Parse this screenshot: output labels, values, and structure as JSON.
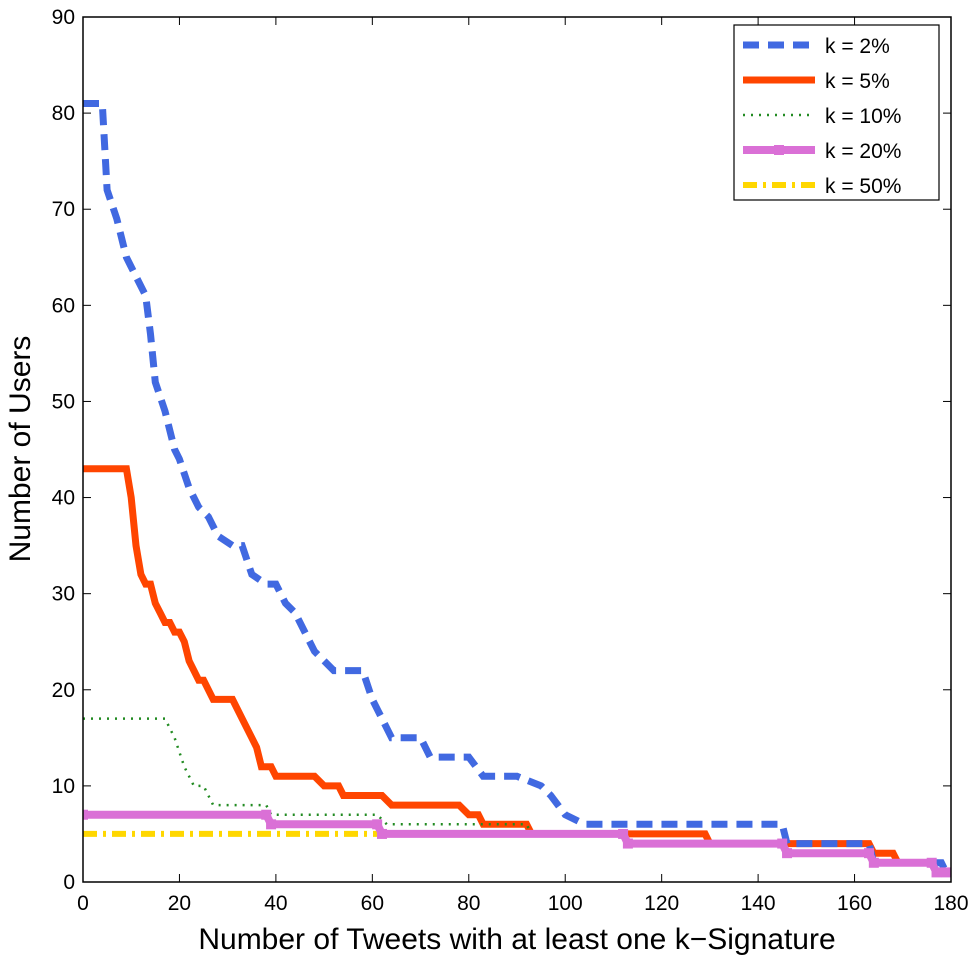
{
  "chart_data": {
    "type": "line",
    "title": "",
    "xlabel": "Number of Tweets with at least one k−Signature",
    "ylabel": "Number of Users",
    "xlim": [
      0,
      180
    ],
    "ylim": [
      0,
      90
    ],
    "xticks": [
      0,
      20,
      40,
      60,
      80,
      100,
      120,
      140,
      160,
      180
    ],
    "yticks": [
      0,
      10,
      20,
      30,
      40,
      50,
      60,
      70,
      80,
      90
    ],
    "grid": false,
    "legend_position": "top-right",
    "series": [
      {
        "name": "k = 2%",
        "color": "#4169E1",
        "style": "dashed",
        "points": [
          [
            0,
            81
          ],
          [
            4,
            81
          ],
          [
            5,
            72
          ],
          [
            7,
            69
          ],
          [
            9,
            65
          ],
          [
            11,
            63
          ],
          [
            13,
            61
          ],
          [
            14,
            57
          ],
          [
            15,
            52
          ],
          [
            17,
            49
          ],
          [
            19,
            45
          ],
          [
            20,
            44
          ],
          [
            22,
            41
          ],
          [
            24,
            39
          ],
          [
            26,
            38
          ],
          [
            28,
            36
          ],
          [
            31,
            35
          ],
          [
            33,
            35
          ],
          [
            35,
            32
          ],
          [
            38,
            31
          ],
          [
            40,
            31
          ],
          [
            42,
            29
          ],
          [
            44,
            28
          ],
          [
            46,
            26
          ],
          [
            48,
            24
          ],
          [
            50,
            23
          ],
          [
            52,
            22
          ],
          [
            58,
            22
          ],
          [
            60,
            19
          ],
          [
            62,
            17
          ],
          [
            64,
            15
          ],
          [
            70,
            15
          ],
          [
            72,
            13
          ],
          [
            80,
            13
          ],
          [
            83,
            11
          ],
          [
            90,
            11
          ],
          [
            95,
            10
          ],
          [
            97,
            9
          ],
          [
            100,
            7
          ],
          [
            104,
            6
          ],
          [
            145,
            6
          ],
          [
            146,
            4
          ],
          [
            163,
            4
          ],
          [
            164,
            2
          ],
          [
            178,
            2
          ],
          [
            179,
            1
          ]
        ]
      },
      {
        "name": "k = 5%",
        "color": "#FF4500",
        "style": "solid",
        "points": [
          [
            0,
            43
          ],
          [
            9,
            43
          ],
          [
            10,
            40
          ],
          [
            11,
            35
          ],
          [
            12,
            32
          ],
          [
            13,
            31
          ],
          [
            14,
            31
          ],
          [
            15,
            29
          ],
          [
            16,
            28
          ],
          [
            17,
            27
          ],
          [
            18,
            27
          ],
          [
            19,
            26
          ],
          [
            20,
            26
          ],
          [
            21,
            25
          ],
          [
            22,
            23
          ],
          [
            23,
            22
          ],
          [
            24,
            21
          ],
          [
            25,
            21
          ],
          [
            27,
            19
          ],
          [
            31,
            19
          ],
          [
            33,
            17
          ],
          [
            35,
            15
          ],
          [
            36,
            14
          ],
          [
            37,
            12
          ],
          [
            39,
            12
          ],
          [
            40,
            11
          ],
          [
            48,
            11
          ],
          [
            50,
            10
          ],
          [
            53,
            10
          ],
          [
            54,
            9
          ],
          [
            62,
            9
          ],
          [
            64,
            8
          ],
          [
            78,
            8
          ],
          [
            80,
            7
          ],
          [
            82,
            7
          ],
          [
            83,
            6
          ],
          [
            92,
            6
          ],
          [
            93,
            5
          ],
          [
            112,
            5
          ],
          [
            113,
            5
          ],
          [
            129,
            5
          ],
          [
            130,
            4
          ],
          [
            145,
            4
          ],
          [
            146,
            4
          ],
          [
            163,
            4
          ],
          [
            164,
            3
          ],
          [
            168,
            3
          ],
          [
            169,
            2
          ],
          [
            176,
            2
          ],
          [
            177,
            1
          ],
          [
            179,
            1
          ]
        ]
      },
      {
        "name": "k = 10%",
        "color": "#228B22",
        "style": "dotted",
        "points": [
          [
            0,
            17
          ],
          [
            17,
            17
          ],
          [
            19,
            15
          ],
          [
            21,
            12
          ],
          [
            23,
            10
          ],
          [
            25,
            10
          ],
          [
            27,
            8
          ],
          [
            38,
            8
          ],
          [
            39,
            7
          ],
          [
            61,
            7
          ],
          [
            63,
            6
          ],
          [
            80,
            6
          ],
          [
            82,
            6
          ],
          [
            92,
            6
          ],
          [
            93,
            5
          ],
          [
            112,
            5
          ],
          [
            113,
            4
          ],
          [
            145,
            4
          ],
          [
            146,
            3
          ],
          [
            163,
            3
          ],
          [
            164,
            2
          ],
          [
            176,
            2
          ],
          [
            177,
            1
          ],
          [
            179,
            1
          ]
        ]
      },
      {
        "name": "k = 20%",
        "color": "#DA70D6",
        "style": "solid-markers",
        "points": [
          [
            0,
            7
          ],
          [
            38,
            7
          ],
          [
            39,
            6
          ],
          [
            61,
            6
          ],
          [
            62,
            5
          ],
          [
            112,
            5
          ],
          [
            113,
            4
          ],
          [
            145,
            4
          ],
          [
            146,
            3
          ],
          [
            163,
            3
          ],
          [
            164,
            2
          ],
          [
            176,
            2
          ],
          [
            177,
            1
          ],
          [
            179,
            1
          ]
        ]
      },
      {
        "name": "k = 50%",
        "color": "#FFD700",
        "style": "dashdot",
        "points": [
          [
            0,
            5
          ],
          [
            112,
            5
          ],
          [
            113,
            4
          ],
          [
            145,
            4
          ],
          [
            146,
            3
          ],
          [
            163,
            3
          ],
          [
            164,
            2
          ],
          [
            176,
            2
          ],
          [
            177,
            1
          ],
          [
            179,
            1
          ]
        ]
      }
    ]
  }
}
